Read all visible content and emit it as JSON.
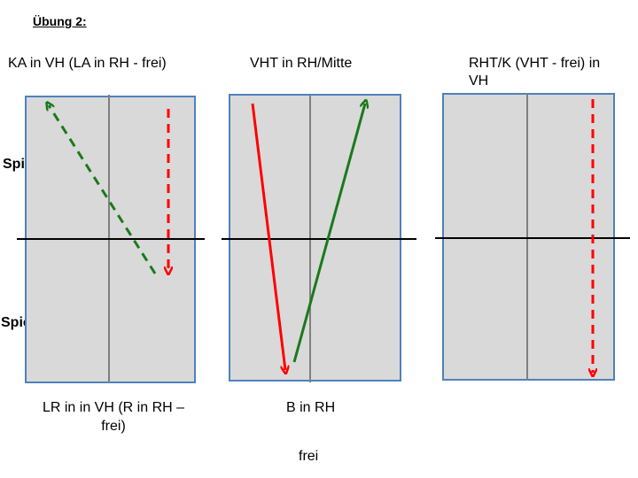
{
  "heading": "Übung 2:",
  "players": {
    "a": "Spieler A",
    "b": "Spieler B"
  },
  "drills": [
    {
      "top_label_line1": "KA in VH (LA in RH - frei)",
      "top_label_line2": "",
      "bottom_label_line1": "LR in in VH (R in RH –",
      "bottom_label_line2": "frei)",
      "arrows": [
        {
          "color": "green",
          "style": "dashed",
          "description": "from B side up-left to A corner"
        },
        {
          "color": "red",
          "style": "dashed",
          "description": "from A side straight down"
        }
      ]
    },
    {
      "top_label_line1": "VHT in RH/Mitte",
      "top_label_line2": "",
      "bottom_label_line1": "B in RH",
      "bottom_label_line2": "",
      "arrows": [
        {
          "color": "red",
          "style": "solid",
          "description": "from A left down to B center"
        },
        {
          "color": "green",
          "style": "solid",
          "description": "from B center up to A right"
        }
      ]
    },
    {
      "top_label_line1": "RHT/K (VHT - frei) in",
      "top_label_line2": "VH",
      "bottom_label_line1": "",
      "bottom_label_line2": "",
      "arrows": [
        {
          "color": "red",
          "style": "dashed",
          "description": "from A right straight down"
        }
      ]
    }
  ],
  "footer": "frei",
  "colors": {
    "table_fill": "#d9d9d9",
    "table_border": "#4f81bd",
    "center_line": "#7f7f7f",
    "net": "#000000",
    "red": "#ff0000",
    "green": "#1a7a1a"
  }
}
